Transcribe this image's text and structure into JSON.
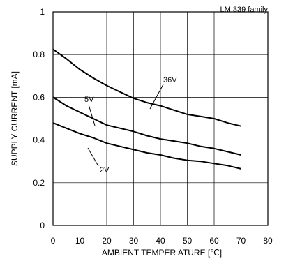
{
  "chart_data": {
    "type": "line",
    "title": "",
    "annotation": "LM 339 family",
    "xlabel": "AMBIENT TEMPER ATURE [℃]",
    "ylabel": "SUPPLY CURRENT [mA]",
    "xlim": [
      0,
      80
    ],
    "ylim": [
      0,
      1
    ],
    "xticks": [
      0,
      10,
      20,
      30,
      40,
      50,
      60,
      70,
      80
    ],
    "yticks": [
      0,
      0.2,
      0.4,
      0.6,
      0.8,
      1
    ],
    "ytick_labels": [
      "0",
      "0.2",
      "0.4",
      "0.6",
      "0.8",
      "1"
    ],
    "grid": true,
    "series": [
      {
        "name": "36V",
        "x": [
          0,
          5,
          10,
          15,
          20,
          25,
          30,
          35,
          40,
          45,
          50,
          55,
          60,
          65,
          70
        ],
        "values": [
          0.825,
          0.78,
          0.73,
          0.69,
          0.655,
          0.625,
          0.595,
          0.575,
          0.56,
          0.54,
          0.52,
          0.51,
          0.5,
          0.48,
          0.465
        ]
      },
      {
        "name": "5V",
        "x": [
          0,
          5,
          10,
          15,
          20,
          25,
          30,
          35,
          40,
          45,
          50,
          55,
          60,
          65,
          70
        ],
        "values": [
          0.6,
          0.56,
          0.53,
          0.5,
          0.47,
          0.455,
          0.44,
          0.42,
          0.405,
          0.395,
          0.385,
          0.37,
          0.36,
          0.345,
          0.33
        ]
      },
      {
        "name": "2V",
        "x": [
          0,
          5,
          10,
          15,
          20,
          25,
          30,
          35,
          40,
          45,
          50,
          55,
          60,
          65,
          70
        ],
        "values": [
          0.48,
          0.455,
          0.43,
          0.41,
          0.385,
          0.37,
          0.355,
          0.34,
          0.33,
          0.315,
          0.305,
          0.3,
          0.29,
          0.28,
          0.265
        ]
      }
    ]
  }
}
